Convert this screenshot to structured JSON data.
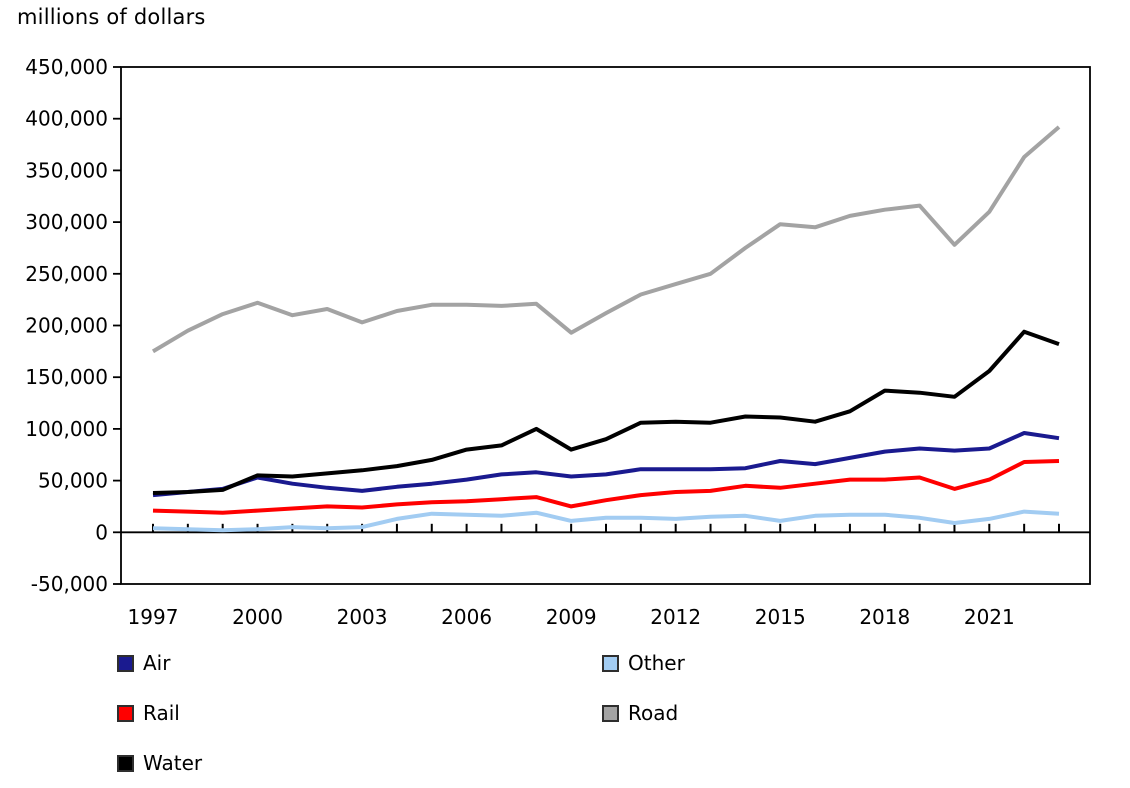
{
  "chart_data": {
    "type": "line",
    "title": "millions of dollars",
    "xlabel": "",
    "ylabel": "millions of dollars",
    "x": [
      1997,
      1998,
      1999,
      2000,
      2001,
      2002,
      2003,
      2004,
      2005,
      2006,
      2007,
      2008,
      2009,
      2010,
      2011,
      2012,
      2013,
      2014,
      2015,
      2016,
      2017,
      2018,
      2019,
      2020,
      2021,
      2022,
      2023
    ],
    "x_tick_labels": [
      "1997",
      "2000",
      "2003",
      "2006",
      "2009",
      "2012",
      "2015",
      "2018",
      "2021"
    ],
    "x_tick_values": [
      1997,
      2000,
      2003,
      2006,
      2009,
      2012,
      2015,
      2018,
      2021
    ],
    "ylim": [
      -50000,
      450000
    ],
    "y_tick_values": [
      450000,
      400000,
      350000,
      300000,
      250000,
      200000,
      150000,
      100000,
      50000,
      0,
      -50000
    ],
    "y_tick_labels": [
      "450,000",
      "400,000",
      "350,000",
      "300,000",
      "250,000",
      "200,000",
      "150,000",
      "100,000",
      "50,000",
      "0",
      "-50,000"
    ],
    "grid": false,
    "legend_position": "bottom",
    "series": [
      {
        "name": "Air",
        "color": "#1A1A8F",
        "values": [
          36000,
          39000,
          42000,
          53000,
          47000,
          43000,
          40000,
          44000,
          47000,
          51000,
          56000,
          58000,
          54000,
          56000,
          61000,
          61000,
          61000,
          62000,
          69000,
          66000,
          72000,
          78000,
          81000,
          79000,
          81000,
          96000,
          91000
        ]
      },
      {
        "name": "Rail",
        "color": "#FF0000",
        "values": [
          21000,
          20000,
          19000,
          21000,
          23000,
          25000,
          24000,
          27000,
          29000,
          30000,
          32000,
          34000,
          25000,
          31000,
          36000,
          39000,
          40000,
          45000,
          43000,
          47000,
          51000,
          51000,
          53000,
          42000,
          51000,
          68000,
          69000
        ]
      },
      {
        "name": "Water",
        "color": "#000000",
        "values": [
          38000,
          39000,
          41000,
          55000,
          54000,
          57000,
          60000,
          64000,
          70000,
          80000,
          84000,
          100000,
          80000,
          90000,
          106000,
          107000,
          106000,
          112000,
          111000,
          107000,
          117000,
          137000,
          135000,
          131000,
          156000,
          194000,
          182000
        ]
      },
      {
        "name": "Other",
        "color": "#A2CCF2",
        "values": [
          4000,
          3000,
          2000,
          3000,
          5000,
          4000,
          5000,
          13000,
          18000,
          17000,
          16000,
          19000,
          11000,
          14000,
          14000,
          13000,
          15000,
          16000,
          11000,
          16000,
          17000,
          17000,
          14000,
          9000,
          13000,
          20000,
          18000
        ]
      },
      {
        "name": "Road",
        "color": "#A3A3A3",
        "values": [
          175000,
          195000,
          211000,
          222000,
          210000,
          216000,
          203000,
          214000,
          220000,
          220000,
          219000,
          221000,
          193000,
          212000,
          230000,
          240000,
          250000,
          275000,
          298000,
          295000,
          306000,
          312000,
          316000,
          278000,
          310000,
          363000,
          392000
        ]
      }
    ]
  },
  "legend": {
    "items": [
      {
        "label": "Air",
        "color": "#1A1A8F",
        "column": 0,
        "row": 0
      },
      {
        "label": "Rail",
        "color": "#FF0000",
        "column": 0,
        "row": 1
      },
      {
        "label": "Water",
        "color": "#000000",
        "column": 0,
        "row": 2
      },
      {
        "label": "Other",
        "color": "#A2CCF2",
        "column": 1,
        "row": 0
      },
      {
        "label": "Road",
        "color": "#A3A3A3",
        "column": 1,
        "row": 1
      }
    ]
  }
}
